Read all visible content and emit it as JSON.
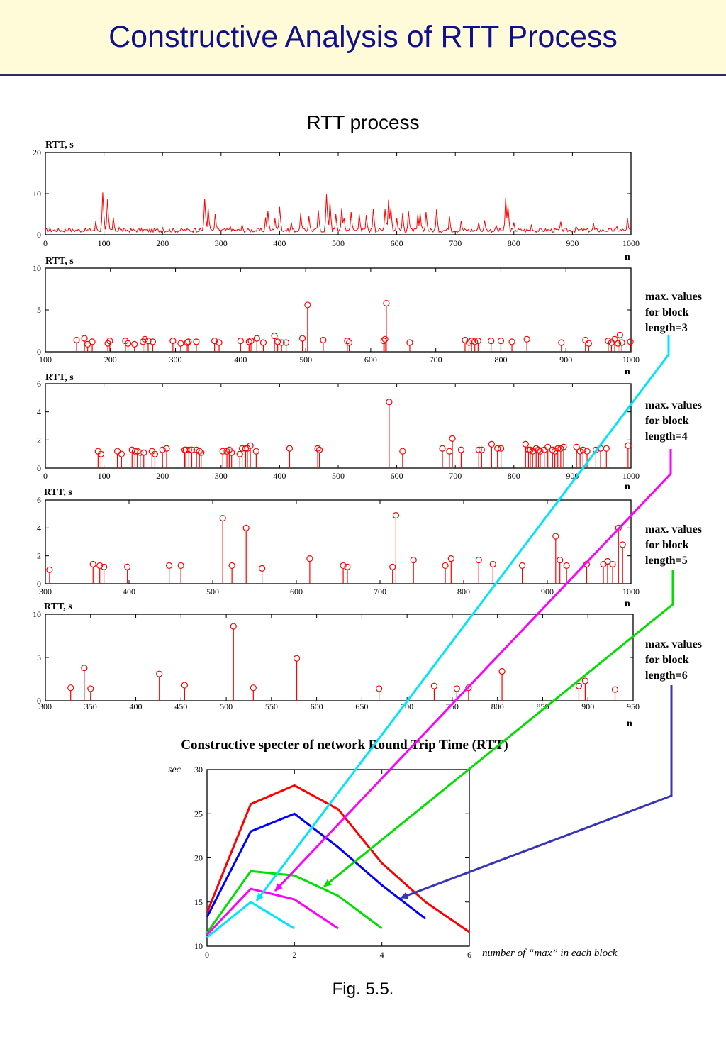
{
  "header": {
    "title": "Constructive Analysis of RTT Process"
  },
  "subtitle": "RTT process",
  "fig_caption": "Fig. 5.5.",
  "colors": {
    "red": "#ff0000",
    "blue": "#0000ff",
    "green": "#00e000",
    "magenta": "#ff00ff",
    "cyan": "#00e5ff",
    "arrow_blue": "#3535b5",
    "title_blue": "#10108a",
    "header_bg": "#fffbd8"
  },
  "annotations": [
    {
      "text_lines": [
        "max. values",
        "for block",
        "length=3"
      ],
      "color": "#00e5ff"
    },
    {
      "text_lines": [
        "max. values",
        "for block",
        "length=4"
      ],
      "color": "#ff00ff"
    },
    {
      "text_lines": [
        "max. values",
        "for block",
        "length=5"
      ],
      "color": "#00e000"
    },
    {
      "text_lines": [
        "max. values",
        "for block",
        "length=6"
      ],
      "color": "#3535b5"
    }
  ],
  "chart_data": [
    {
      "type": "line",
      "ylabel": "RTT, s",
      "xlabel": "n",
      "xlim": [
        0,
        1000
      ],
      "ylim": [
        0,
        20
      ],
      "xticks": [
        0,
        100,
        200,
        300,
        400,
        500,
        600,
        700,
        800,
        900,
        1000
      ],
      "yticks": [
        0,
        10,
        20
      ],
      "bursts": [
        [
          7,
          1.6
        ],
        [
          40,
          1.5
        ],
        [
          85,
          3.3
        ],
        [
          98,
          10.3
        ],
        [
          106,
          8.6
        ],
        [
          115,
          4.2
        ],
        [
          125,
          1.8
        ],
        [
          170,
          1.3
        ],
        [
          200,
          1.8
        ],
        [
          255,
          1.5
        ],
        [
          272,
          8.8
        ],
        [
          278,
          6.5
        ],
        [
          290,
          5.0
        ],
        [
          315,
          2.0
        ],
        [
          335,
          2.5
        ],
        [
          375,
          4.2
        ],
        [
          380,
          5.8
        ],
        [
          392,
          4.0
        ],
        [
          400,
          6.8
        ],
        [
          420,
          3.0
        ],
        [
          435,
          5.2
        ],
        [
          450,
          4.5
        ],
        [
          465,
          6.0
        ],
        [
          480,
          9.8
        ],
        [
          485,
          8.0
        ],
        [
          495,
          5.0
        ],
        [
          505,
          6.5
        ],
        [
          510,
          4.0
        ],
        [
          522,
          5.5
        ],
        [
          535,
          5.0
        ],
        [
          548,
          4.8
        ],
        [
          560,
          6.4
        ],
        [
          580,
          6.2
        ],
        [
          585,
          8.5
        ],
        [
          590,
          6.5
        ],
        [
          600,
          4.0
        ],
        [
          610,
          5.2
        ],
        [
          620,
          5.8
        ],
        [
          635,
          5.0
        ],
        [
          640,
          5.2
        ],
        [
          650,
          5.5
        ],
        [
          668,
          6.2
        ],
        [
          690,
          4.5
        ],
        [
          710,
          3.4
        ],
        [
          740,
          3.0
        ],
        [
          750,
          3.5
        ],
        [
          770,
          2.2
        ],
        [
          785,
          9.0
        ],
        [
          790,
          7.0
        ],
        [
          800,
          3.0
        ],
        [
          830,
          2.5
        ],
        [
          880,
          3.2
        ],
        [
          905,
          2.0
        ],
        [
          935,
          2.8
        ],
        [
          975,
          2.0
        ],
        [
          993,
          4.0
        ]
      ]
    },
    {
      "type": "scatter",
      "ylabel": "RTT, s",
      "xlabel": "n",
      "xlim": [
        100,
        1000
      ],
      "ylim": [
        0,
        10
      ],
      "xticks": [
        100,
        200,
        300,
        400,
        500,
        600,
        700,
        800,
        900,
        1000
      ],
      "yticks": [
        0,
        5,
        10
      ],
      "points": [
        [
          148,
          1.4
        ],
        [
          160,
          1.6
        ],
        [
          165,
          0.9
        ],
        [
          172,
          1.2
        ],
        [
          196,
          1.0
        ],
        [
          199,
          1.3
        ],
        [
          223,
          1.3
        ],
        [
          227,
          1.0
        ],
        [
          237,
          0.9
        ],
        [
          250,
          1.2
        ],
        [
          253,
          1.5
        ],
        [
          258,
          1.3
        ],
        [
          265,
          1.2
        ],
        [
          296,
          1.3
        ],
        [
          308,
          1.0
        ],
        [
          318,
          1.1
        ],
        [
          320,
          1.2
        ],
        [
          332,
          1.2
        ],
        [
          360,
          1.3
        ],
        [
          367,
          1.1
        ],
        [
          400,
          1.3
        ],
        [
          413,
          1.2
        ],
        [
          416,
          1.3
        ],
        [
          425,
          1.6
        ],
        [
          435,
          1.1
        ],
        [
          452,
          1.9
        ],
        [
          457,
          1.2
        ],
        [
          463,
          1.1
        ],
        [
          470,
          1.1
        ],
        [
          495,
          1.6
        ],
        [
          503,
          5.6
        ],
        [
          527,
          1.4
        ],
        [
          564,
          1.3
        ],
        [
          567,
          1.1
        ],
        [
          620,
          1.3
        ],
        [
          622,
          1.5
        ],
        [
          624,
          5.8
        ],
        [
          660,
          1.1
        ],
        [
          745,
          1.4
        ],
        [
          751,
          1.1
        ],
        [
          755,
          1.3
        ],
        [
          760,
          1.2
        ],
        [
          765,
          1.3
        ],
        [
          785,
          1.3
        ],
        [
          800,
          1.3
        ],
        [
          817,
          1.2
        ],
        [
          840,
          1.5
        ],
        [
          893,
          1.1
        ],
        [
          930,
          1.4
        ],
        [
          935,
          1.0
        ],
        [
          965,
          1.3
        ],
        [
          970,
          1.1
        ],
        [
          975,
          1.5
        ],
        [
          980,
          1.0
        ],
        [
          983,
          2.0
        ],
        [
          986,
          1.1
        ],
        [
          999,
          1.2
        ]
      ]
    },
    {
      "type": "scatter",
      "ylabel": "RTT, s",
      "xlabel": "n",
      "xlim": [
        0,
        1000
      ],
      "ylim": [
        0,
        6
      ],
      "xticks": [
        0,
        100,
        200,
        300,
        400,
        500,
        600,
        700,
        800,
        900,
        1000
      ],
      "yticks": [
        0,
        2,
        4,
        6
      ],
      "points": [
        [
          90,
          1.2
        ],
        [
          95,
          1.0
        ],
        [
          123,
          1.2
        ],
        [
          130,
          1.0
        ],
        [
          148,
          1.3
        ],
        [
          153,
          1.2
        ],
        [
          157,
          1.2
        ],
        [
          162,
          1.1
        ],
        [
          168,
          1.1
        ],
        [
          182,
          1.2
        ],
        [
          187,
          1.0
        ],
        [
          200,
          1.3
        ],
        [
          207,
          1.4
        ],
        [
          238,
          1.3
        ],
        [
          240,
          1.3
        ],
        [
          245,
          1.3
        ],
        [
          250,
          1.3
        ],
        [
          258,
          1.3
        ],
        [
          263,
          1.2
        ],
        [
          266,
          1.1
        ],
        [
          303,
          1.2
        ],
        [
          310,
          1.2
        ],
        [
          314,
          1.3
        ],
        [
          318,
          1.1
        ],
        [
          332,
          1.0
        ],
        [
          336,
          1.4
        ],
        [
          342,
          1.4
        ],
        [
          345,
          1.4
        ],
        [
          350,
          1.6
        ],
        [
          360,
          1.2
        ],
        [
          417,
          1.4
        ],
        [
          465,
          1.4
        ],
        [
          468,
          1.3
        ],
        [
          587,
          4.7
        ],
        [
          610,
          1.2
        ],
        [
          678,
          1.4
        ],
        [
          690,
          1.2
        ],
        [
          695,
          2.1
        ],
        [
          710,
          1.3
        ],
        [
          740,
          1.3
        ],
        [
          745,
          1.3
        ],
        [
          762,
          1.7
        ],
        [
          772,
          1.4
        ],
        [
          778,
          1.4
        ],
        [
          820,
          1.7
        ],
        [
          825,
          1.3
        ],
        [
          828,
          1.3
        ],
        [
          832,
          1.2
        ],
        [
          838,
          1.4
        ],
        [
          842,
          1.3
        ],
        [
          845,
          1.2
        ],
        [
          852,
          1.3
        ],
        [
          858,
          1.5
        ],
        [
          866,
          1.3
        ],
        [
          870,
          1.2
        ],
        [
          875,
          1.4
        ],
        [
          880,
          1.4
        ],
        [
          885,
          1.5
        ],
        [
          907,
          1.5
        ],
        [
          913,
          1.2
        ],
        [
          918,
          1.3
        ],
        [
          925,
          1.2
        ],
        [
          940,
          1.3
        ],
        [
          948,
          1.4
        ],
        [
          958,
          1.4
        ],
        [
          995,
          1.6
        ]
      ]
    },
    {
      "type": "scatter",
      "ylabel": "RTT, s",
      "xlabel": "n",
      "xlim": [
        300,
        1000
      ],
      "ylim": [
        0,
        6
      ],
      "xticks": [
        300,
        400,
        500,
        600,
        700,
        800,
        900,
        1000
      ],
      "yticks": [
        0,
        2,
        4,
        6
      ],
      "points": [
        [
          305,
          1.0
        ],
        [
          357,
          1.4
        ],
        [
          365,
          1.3
        ],
        [
          370,
          1.2
        ],
        [
          398,
          1.2
        ],
        [
          448,
          1.3
        ],
        [
          462,
          1.3
        ],
        [
          512,
          4.7
        ],
        [
          523,
          1.3
        ],
        [
          540,
          4.0
        ],
        [
          559,
          1.1
        ],
        [
          616,
          1.8
        ],
        [
          656,
          1.3
        ],
        [
          661,
          1.2
        ],
        [
          715,
          1.2
        ],
        [
          719,
          4.9
        ],
        [
          740,
          1.7
        ],
        [
          778,
          1.3
        ],
        [
          785,
          1.8
        ],
        [
          818,
          1.7
        ],
        [
          835,
          1.4
        ],
        [
          870,
          1.3
        ],
        [
          910,
          3.4
        ],
        [
          915,
          1.7
        ],
        [
          923,
          1.3
        ],
        [
          947,
          1.4
        ],
        [
          967,
          1.4
        ],
        [
          972,
          1.6
        ],
        [
          978,
          1.4
        ],
        [
          985,
          4.0
        ],
        [
          990,
          2.8
        ]
      ]
    },
    {
      "type": "scatter",
      "ylabel": "RTT, s",
      "xlabel": "n",
      "xlim": [
        300,
        950
      ],
      "ylim": [
        0,
        10
      ],
      "xticks": [
        300,
        350,
        400,
        450,
        500,
        550,
        600,
        650,
        700,
        750,
        800,
        850,
        900,
        950
      ],
      "yticks": [
        0,
        5,
        10
      ],
      "points": [
        [
          328,
          1.5
        ],
        [
          343,
          3.8
        ],
        [
          350,
          1.4
        ],
        [
          426,
          3.1
        ],
        [
          454,
          1.8
        ],
        [
          508,
          8.6
        ],
        [
          530,
          1.5
        ],
        [
          578,
          4.9
        ],
        [
          669,
          1.4
        ],
        [
          730,
          1.7
        ],
        [
          755,
          1.4
        ],
        [
          768,
          1.5
        ],
        [
          805,
          3.4
        ],
        [
          890,
          1.7
        ],
        [
          897,
          2.3
        ],
        [
          930,
          1.3
        ]
      ]
    },
    {
      "type": "line",
      "title": "Constructive specter of network Round Trip Time (RTT)",
      "ylabel": "sec",
      "xlabel": "number of “max” in each block",
      "xlim": [
        0,
        6
      ],
      "ylim": [
        10,
        30
      ],
      "xticks": [
        0,
        2,
        4,
        6
      ],
      "yticks": [
        10,
        15,
        20,
        25,
        30
      ],
      "series": [
        {
          "color": "#ff0000",
          "x": [
            0,
            1,
            2,
            3,
            4,
            5,
            6
          ],
          "y": [
            13.8,
            26.1,
            28.2,
            25.5,
            19.4,
            15.0,
            11.6
          ]
        },
        {
          "color": "#0000ff",
          "x": [
            0,
            1,
            2,
            3,
            4,
            5
          ],
          "y": [
            13.3,
            23.0,
            25.0,
            21.2,
            16.9,
            13.1
          ]
        },
        {
          "color": "#00e000",
          "x": [
            0,
            1,
            2,
            3,
            4
          ],
          "y": [
            11.5,
            18.5,
            18.0,
            15.7,
            12.0
          ]
        },
        {
          "color": "#ff00ff",
          "x": [
            0,
            1,
            2,
            3
          ],
          "y": [
            11.3,
            16.5,
            15.3,
            12.0
          ]
        },
        {
          "color": "#00e5ff",
          "x": [
            0,
            1,
            2
          ],
          "y": [
            11.0,
            15.0,
            12.0
          ]
        }
      ]
    }
  ]
}
